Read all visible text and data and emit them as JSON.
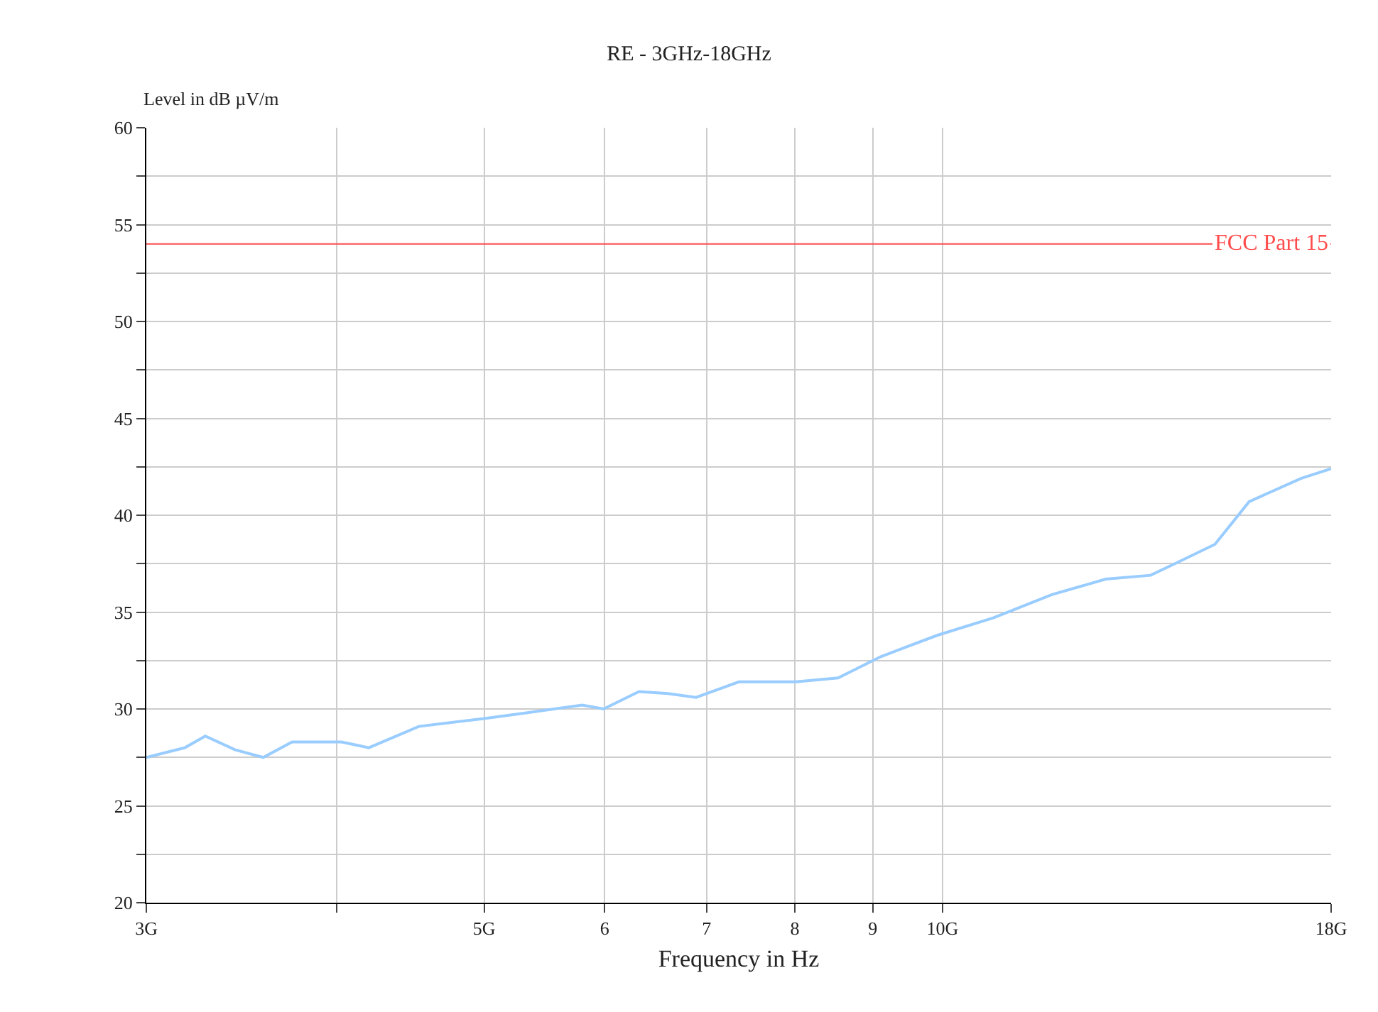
{
  "chart_data": {
    "type": "line",
    "title": "RE - 3GHz-18GHz",
    "xlabel": "Frequency in Hz",
    "ylabel": "Level in dB µV/m",
    "log": "x",
    "grid": true,
    "marker": "none",
    "line_style": "solid",
    "x": [
      3.0,
      3.18,
      3.28,
      3.43,
      3.58,
      3.74,
      4.03,
      4.2,
      4.53,
      4.99,
      5.33,
      5.8,
      5.99,
      6.32,
      6.6,
      6.89,
      7.35,
      8.01,
      8.54,
      9.11,
      9.92,
      10.8,
      11.8,
      12.8,
      13.7,
      14.3,
      15.1,
      15.9,
      17.2,
      18.0
    ],
    "series": [
      {
        "color": "#99ccff",
        "values": [
          27.5,
          28.0,
          28.6,
          27.9,
          27.5,
          28.3,
          28.3,
          28.0,
          29.1,
          29.5,
          29.8,
          30.2,
          30.0,
          30.9,
          30.8,
          30.6,
          31.4,
          31.4,
          31.6,
          32.7,
          33.8,
          34.7,
          35.9,
          36.7,
          36.9,
          37.6,
          38.5,
          40.7,
          41.9,
          42.4
        ]
      }
    ],
    "ref_lines": [
      {
        "axis": "y",
        "value": 54,
        "label": "FCC Part 15",
        "color": "#ff4d4d"
      }
    ],
    "xlim": [
      3.0,
      18.0
    ],
    "xticks": [
      {
        "value": 3,
        "label": "3G"
      },
      {
        "value": 4,
        "label": null
      },
      {
        "value": 5,
        "label": "5G"
      },
      6,
      7,
      8,
      9,
      {
        "value": 10,
        "label": "10G"
      },
      {
        "value": 18,
        "label": "18G"
      }
    ],
    "ylim": [
      20,
      60
    ],
    "yticks": [
      20,
      {
        "value": 22.5,
        "label": null
      },
      25,
      {
        "value": 27.5,
        "label": null
      },
      30,
      {
        "value": 32.5,
        "label": null
      },
      35,
      {
        "value": 37.5,
        "label": null
      },
      40,
      {
        "value": 42.5,
        "label": null
      },
      45,
      {
        "value": 47.5,
        "label": null
      },
      50,
      {
        "value": 52.5,
        "label": null
      },
      55,
      {
        "value": 57.5,
        "label": null
      },
      60
    ]
  }
}
